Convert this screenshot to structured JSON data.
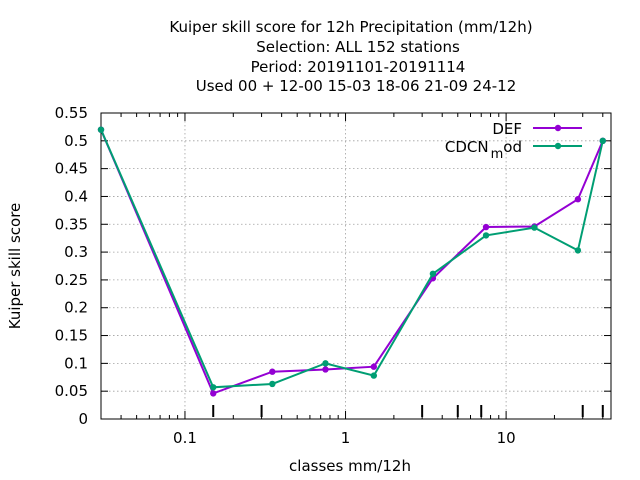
{
  "chart_data": {
    "type": "line",
    "title_lines": [
      "Kuiper skill score  for 12h Precipitation (mm/12h)",
      "Selection: ALL    152 stations",
      "Period: 20191101-20191114",
      "Used  00 + 12-00 15-03 18-06 21-09 24-12"
    ],
    "xlabel": "classes mm/12h",
    "ylabel": "Kuiper skill score",
    "x_scale": "log",
    "xlim": [
      0.03,
      45
    ],
    "ylim": [
      0,
      0.55
    ],
    "grid": true,
    "legend_position": "top-right",
    "x_tick_labels": [
      "0.1",
      "1",
      "10"
    ],
    "x_tick_values": [
      0.1,
      1,
      10
    ],
    "y_tick_labels": [
      "0",
      "0.05",
      "0.1",
      "0.15",
      "0.2",
      "0.25",
      "0.3",
      "0.35",
      "0.4",
      "0.45",
      "0.5",
      "0.55"
    ],
    "y_tick_values": [
      0,
      0.05,
      0.1,
      0.15,
      0.2,
      0.25,
      0.3,
      0.35,
      0.4,
      0.45,
      0.5,
      0.55
    ],
    "x": [
      0.03,
      0.15,
      0.35,
      0.75,
      1.5,
      3.5,
      7.5,
      15,
      28,
      40
    ],
    "series": [
      {
        "name": "DEF",
        "color": "#9400d3",
        "values": [
          0.52,
          0.046,
          0.085,
          0.089,
          0.094,
          0.253,
          0.345,
          0.346,
          0.395,
          0.5
        ]
      },
      {
        "name": "CDCN_mod",
        "legend_main": "CDCN",
        "legend_sub": "m",
        "legend_tail": "od",
        "color": "#009e73",
        "values": [
          0.52,
          0.057,
          0.063,
          0.1,
          0.078,
          0.261,
          0.33,
          0.344,
          0.303,
          0.5
        ]
      }
    ]
  }
}
